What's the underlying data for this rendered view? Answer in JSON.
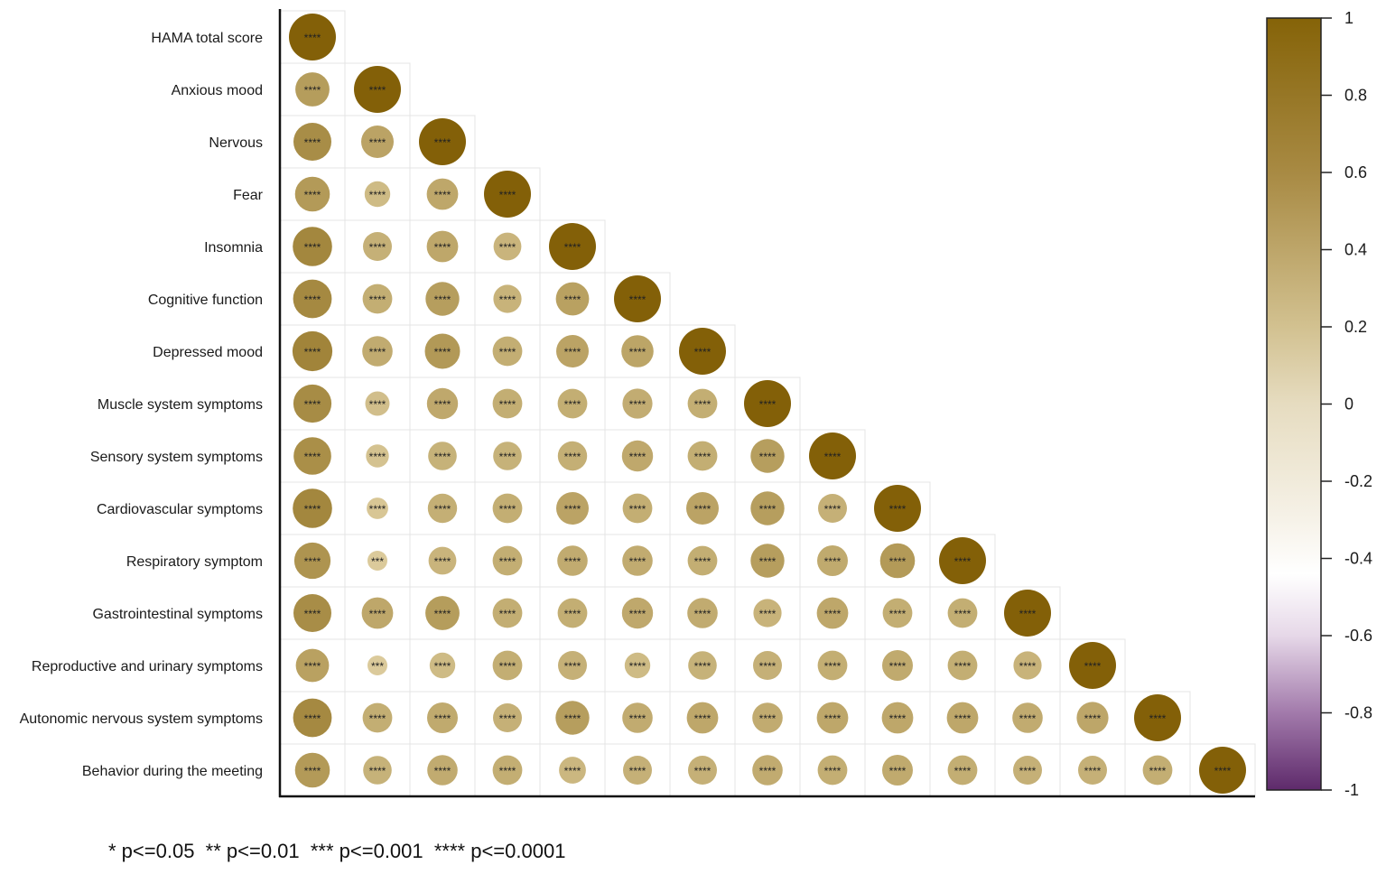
{
  "chart_data": {
    "type": "heatmap",
    "subtype": "lower-triangle correlation matrix (circle size and color encode correlation)",
    "variables": [
      "HAMA total score",
      "Anxious mood",
      "Nervous",
      "Fear",
      "Insomnia",
      "Cognitive function",
      "Depressed mood",
      "Muscle system symptoms",
      "Sensory system symptoms",
      "Cardiovascular symptoms",
      "Respiratory symptom",
      "Gastrointestinal symptoms",
      "Reproductive and urinary symptoms",
      "Autonomic nervous system symptoms",
      "Behavior during the meeting"
    ],
    "matrix": [
      [
        1.0
      ],
      [
        0.53,
        1.0
      ],
      [
        0.65,
        0.48,
        1.0
      ],
      [
        0.55,
        0.3,
        0.45,
        1.0
      ],
      [
        0.7,
        0.38,
        0.45,
        0.35,
        1.0
      ],
      [
        0.68,
        0.4,
        0.52,
        0.36,
        0.5,
        1.0
      ],
      [
        0.72,
        0.42,
        0.56,
        0.4,
        0.48,
        0.47,
        1.0
      ],
      [
        0.66,
        0.27,
        0.44,
        0.4,
        0.4,
        0.41,
        0.4,
        1.0
      ],
      [
        0.64,
        0.24,
        0.37,
        0.37,
        0.39,
        0.44,
        0.4,
        0.52,
        1.0
      ],
      [
        0.7,
        0.21,
        0.39,
        0.4,
        0.48,
        0.4,
        0.48,
        0.52,
        0.38,
        1.0
      ],
      [
        0.6,
        0.18,
        0.35,
        0.4,
        0.42,
        0.42,
        0.4,
        0.52,
        0.43,
        0.55,
        1.0
      ],
      [
        0.65,
        0.45,
        0.53,
        0.4,
        0.4,
        0.44,
        0.42,
        0.36,
        0.45,
        0.4,
        0.4,
        1.0
      ],
      [
        0.5,
        0.18,
        0.3,
        0.4,
        0.38,
        0.3,
        0.37,
        0.38,
        0.4,
        0.43,
        0.4,
        0.36,
        1.0
      ],
      [
        0.68,
        0.4,
        0.43,
        0.38,
        0.52,
        0.42,
        0.45,
        0.42,
        0.45,
        0.45,
        0.45,
        0.42,
        0.46,
        1.0
      ],
      [
        0.55,
        0.37,
        0.42,
        0.4,
        0.33,
        0.38,
        0.38,
        0.42,
        0.4,
        0.43,
        0.4,
        0.38,
        0.38,
        0.4,
        1.0
      ]
    ],
    "significance": [
      [
        "****"
      ],
      [
        "****",
        "****"
      ],
      [
        "****",
        "****",
        "****"
      ],
      [
        "****",
        "****",
        "****",
        "****"
      ],
      [
        "****",
        "****",
        "****",
        "****",
        "****"
      ],
      [
        "****",
        "****",
        "****",
        "****",
        "****",
        "****"
      ],
      [
        "****",
        "****",
        "****",
        "****",
        "****",
        "****",
        "****"
      ],
      [
        "****",
        "****",
        "****",
        "****",
        "****",
        "****",
        "****",
        "****"
      ],
      [
        "****",
        "****",
        "****",
        "****",
        "****",
        "****",
        "****",
        "****",
        "****"
      ],
      [
        "****",
        "****",
        "****",
        "****",
        "****",
        "****",
        "****",
        "****",
        "****",
        "****"
      ],
      [
        "****",
        "***",
        "****",
        "****",
        "****",
        "****",
        "****",
        "****",
        "****",
        "****",
        "****"
      ],
      [
        "****",
        "****",
        "****",
        "****",
        "****",
        "****",
        "****",
        "****",
        "****",
        "****",
        "****",
        "****"
      ],
      [
        "****",
        "***",
        "****",
        "****",
        "****",
        "****",
        "****",
        "****",
        "****",
        "****",
        "****",
        "****",
        "****"
      ],
      [
        "****",
        "****",
        "****",
        "****",
        "****",
        "****",
        "****",
        "****",
        "****",
        "****",
        "****",
        "****",
        "****",
        "****"
      ],
      [
        "****",
        "****",
        "****",
        "****",
        "****",
        "****",
        "****",
        "****",
        "****",
        "****",
        "****",
        "****",
        "****",
        "****",
        "****"
      ]
    ],
    "colorbar": {
      "range": [
        -1,
        1
      ],
      "ticks": [
        "1",
        "0.8",
        "0.6",
        "0.4",
        "0.2",
        "0",
        "-0.2",
        "-0.4",
        "-0.6",
        "-0.8",
        "-1"
      ],
      "tick_values": [
        1,
        0.8,
        0.6,
        0.4,
        0.2,
        0,
        -0.2,
        -0.4,
        -0.6,
        -0.8,
        -1
      ],
      "positive_color": "#8a6a0c",
      "mid_color": "#ffffff",
      "negative_color": "#5e2a6b"
    },
    "footnote": "* p<=0.05  ** p<=0.01  *** p<=0.001  **** p<=0.0001"
  }
}
